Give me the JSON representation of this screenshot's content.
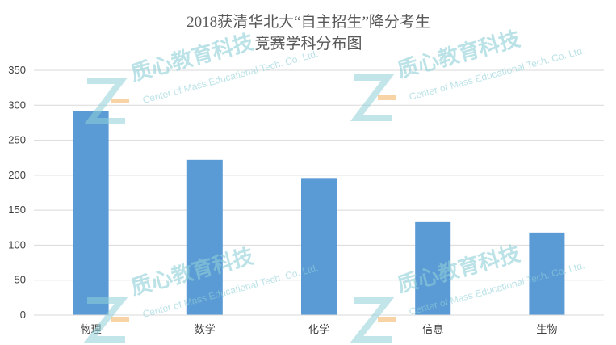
{
  "chart_data": {
    "type": "bar",
    "title": "2018获清华北大“自主招生”降分考生",
    "subtitle": "竞赛学科分布图",
    "categories": [
      "物理",
      "数学",
      "化学",
      "信息",
      "生物"
    ],
    "values": [
      292,
      222,
      196,
      133,
      118
    ],
    "ylim": [
      0,
      350
    ],
    "yticks": [
      0,
      50,
      100,
      150,
      200,
      250,
      300,
      350
    ],
    "grid": true,
    "legend": "none",
    "bar_color": "#5b9bd5"
  },
  "watermark": {
    "name_cn": "质心教育科技",
    "name_en": "Center of Mass Educational Tech. Co. Ltd."
  }
}
